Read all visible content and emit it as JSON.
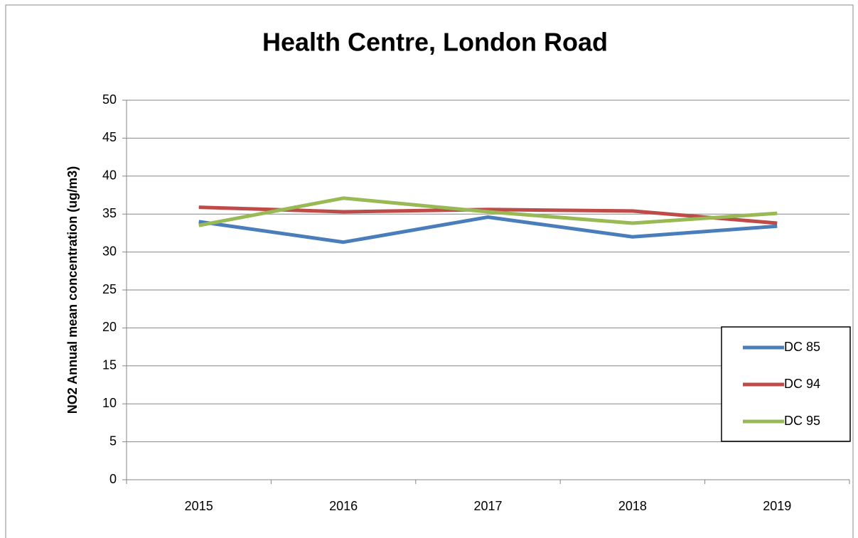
{
  "chart_data": {
    "type": "line",
    "title": "Health Centre, London Road",
    "y_label": "NO2 Annual mean concentration (ug/m3)",
    "categories": [
      "2015",
      "2016",
      "2017",
      "2018",
      "2019"
    ],
    "series": [
      {
        "name": "DC 85",
        "color": "#4a7ebb",
        "values": [
          34.0,
          31.3,
          34.6,
          32.0,
          33.4
        ]
      },
      {
        "name": "DC 94",
        "color": "#be4b48",
        "values": [
          35.9,
          35.3,
          35.6,
          35.4,
          33.8
        ]
      },
      {
        "name": "DC 95",
        "color": "#98b954",
        "values": [
          33.5,
          37.1,
          35.3,
          33.8,
          35.1
        ]
      }
    ],
    "ylim": [
      0,
      50
    ],
    "yticks": [
      0,
      5,
      10,
      15,
      20,
      25,
      30,
      35,
      40,
      45,
      50
    ],
    "grid": true,
    "legend": "right"
  }
}
